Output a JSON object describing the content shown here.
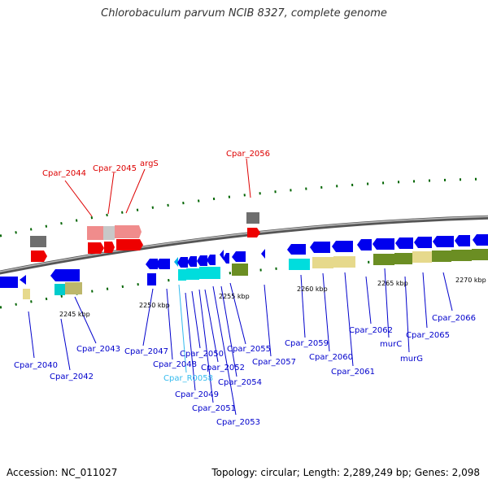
{
  "title": "Chlorobaculum parvum NCIB 8327, complete genome",
  "footer": {
    "accession": "Accession: NC_011027",
    "summary": "Topology: circular; Length: 2,289,249 bp; Genes: 2,098"
  },
  "ticks": [
    "2245 kbp",
    "2250 kbp",
    "2255 kbp",
    "2260 kbp",
    "2265 kbp",
    "2270 kbp"
  ],
  "labels": {
    "Cpar_2040": "Cpar_2040",
    "Cpar_2042": "Cpar_2042",
    "Cpar_2043": "Cpar_2043",
    "Cpar_2044": "Cpar_2044",
    "Cpar_2045": "Cpar_2045",
    "argS": "argS",
    "Cpar_2047": "Cpar_2047",
    "Cpar_2048": "Cpar_2048",
    "Cpar_R0058": "Cpar_R0058",
    "Cpar_2049": "Cpar_2049",
    "Cpar_2050": "Cpar_2050",
    "Cpar_2051": "Cpar_2051",
    "Cpar_2052": "Cpar_2052",
    "Cpar_2053": "Cpar_2053",
    "Cpar_2054": "Cpar_2054",
    "Cpar_2055": "Cpar_2055",
    "Cpar_2056": "Cpar_2056",
    "Cpar_2057": "Cpar_2057",
    "Cpar_2059": "Cpar_2059",
    "Cpar_2060": "Cpar_2060",
    "Cpar_2061": "Cpar_2061",
    "Cpar_2062": "Cpar_2062",
    "murC": "murC",
    "murG": "murG",
    "Cpar_2065": "Cpar_2065",
    "Cpar_2066": "Cpar_2066"
  },
  "colors": {
    "blue": "#0000ee",
    "red": "#ee0000",
    "pink": "#f08c8c",
    "grey": "#6e6e6e",
    "lightgrey": "#c8c8c8",
    "cyan": "#00dddd",
    "khaki": "#e6d98c",
    "olive": "#6b8e23",
    "darkkhaki": "#bdb76b",
    "green": "#008000",
    "rna": "#00b0e8"
  }
}
